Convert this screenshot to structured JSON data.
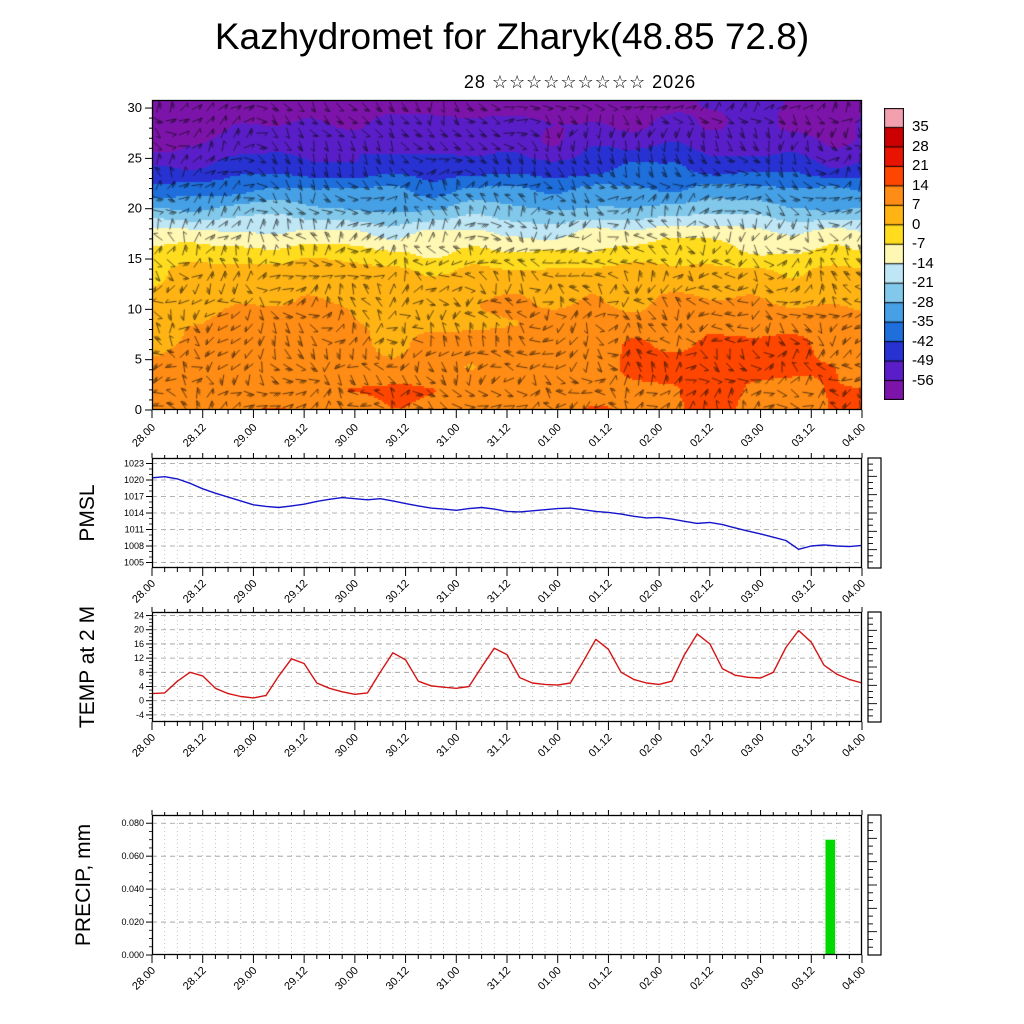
{
  "title": "Kazhydromet for Zharyk(48.85 72.8)",
  "subtitle": "28 ☆☆☆☆☆☆☆☆☆ 2026",
  "x_labels": [
    "28.00",
    "28.12",
    "29.00",
    "29.12",
    "30.00",
    "30.12",
    "31.00",
    "31.12",
    "01.00",
    "01.12",
    "02.00",
    "02.12",
    "03.00",
    "03.12",
    "04.00"
  ],
  "chart_data": [
    {
      "type": "heatmap",
      "name": "temperature-wind-cross-section",
      "x": [
        "28.00",
        "28.12",
        "29.00",
        "29.12",
        "30.00",
        "30.12",
        "31.00",
        "31.12",
        "01.00",
        "01.12",
        "02.00",
        "02.12",
        "03.00",
        "03.12",
        "04.00"
      ],
      "y_levels": [
        0,
        2,
        4,
        6,
        8,
        10,
        12,
        14,
        16,
        18,
        20,
        22,
        24,
        26,
        28,
        30
      ],
      "yticks": [
        0,
        5,
        10,
        15,
        20,
        25,
        30
      ],
      "ylim": [
        0,
        30
      ],
      "overlay": "wind-barbs",
      "colorbar_ticks": [
        35,
        28,
        21,
        14,
        7,
        0,
        -7,
        -14,
        -21,
        -28,
        -35,
        -42,
        -49,
        -56
      ],
      "colorbar_colors": [
        "#f2a0ae",
        "#cc0000",
        "#e81400",
        "#ff4600",
        "#ff8c14",
        "#ffb414",
        "#ffdc1e",
        "#fff8b4",
        "#bee6f5",
        "#82c8eb",
        "#46a0e6",
        "#1e6edc",
        "#2832d2",
        "#5a1ec8",
        "#7d14aa"
      ],
      "values": [
        [
          12,
          11,
          12,
          12,
          11,
          12,
          12,
          13,
          13,
          14,
          16,
          17,
          16,
          14,
          13
        ],
        [
          12,
          11,
          12,
          12,
          11,
          12,
          12,
          13,
          13,
          14,
          15,
          17,
          15,
          14,
          12
        ],
        [
          11,
          10,
          11,
          11,
          10,
          11,
          11,
          12,
          12,
          13,
          15,
          16,
          15,
          13,
          12
        ],
        [
          10,
          9,
          10,
          10,
          9,
          10,
          10,
          11,
          11,
          12,
          14,
          15,
          14,
          12,
          11
        ],
        [
          9,
          8,
          9,
          9,
          8,
          9,
          9,
          10,
          10,
          11,
          12,
          13,
          12,
          11,
          10
        ],
        [
          7,
          6,
          7,
          7,
          6,
          7,
          7,
          8,
          8,
          9,
          10,
          11,
          10,
          9,
          8
        ],
        [
          4,
          3,
          4,
          4,
          3,
          4,
          4,
          5,
          5,
          6,
          6,
          7,
          6,
          5,
          5
        ],
        [
          0,
          -1,
          0,
          0,
          -1,
          0,
          0,
          1,
          1,
          1,
          2,
          2,
          1,
          1,
          0
        ],
        [
          -8,
          -9,
          -8,
          -8,
          -9,
          -8,
          -8,
          -7,
          -7,
          -7,
          -6,
          -6,
          -7,
          -7,
          -8
        ],
        [
          -16,
          -17,
          -16,
          -16,
          -17,
          -16,
          -16,
          -15,
          -15,
          -15,
          -14,
          -14,
          -15,
          -15,
          -16
        ],
        [
          -26,
          -27,
          -26,
          -25,
          -26,
          -26,
          -25,
          -24,
          -25,
          -24,
          -24,
          -23,
          -24,
          -25,
          -26
        ],
        [
          -36,
          -37,
          -36,
          -35,
          -36,
          -36,
          -35,
          -34,
          -35,
          -34,
          -34,
          -33,
          -34,
          -35,
          -36
        ],
        [
          -46,
          -47,
          -46,
          -45,
          -46,
          -46,
          -45,
          -44,
          -45,
          -44,
          -44,
          -43,
          -44,
          -45,
          -46
        ],
        [
          -53,
          -54,
          -53,
          -52,
          -53,
          -53,
          -52,
          -51,
          -52,
          -51,
          -51,
          -50,
          -51,
          -52,
          -53
        ],
        [
          -57,
          -58,
          -57,
          -57,
          -58,
          -57,
          -57,
          -56,
          -57,
          -56,
          -56,
          -55,
          -56,
          -57,
          -57
        ],
        [
          -60,
          -60,
          -59,
          -59,
          -60,
          -59,
          -59,
          -58,
          -59,
          -58,
          -58,
          -57,
          -58,
          -59,
          -60
        ]
      ]
    },
    {
      "type": "line",
      "name": "PMSL",
      "ylabel": "PMSL",
      "color": "#1414cc",
      "ylim": [
        1004,
        1024
      ],
      "yticks": [
        1005,
        1008,
        1011,
        1014,
        1017,
        1020,
        1023
      ],
      "x_start": "28.00",
      "x_end": "04.00",
      "interval_hours": 3,
      "values": [
        1020.4,
        1020.6,
        1020.2,
        1019.4,
        1018.4,
        1017.6,
        1016.9,
        1016.2,
        1015.5,
        1015.2,
        1015.0,
        1015.3,
        1015.6,
        1016.1,
        1016.5,
        1016.8,
        1016.6,
        1016.4,
        1016.6,
        1016.2,
        1015.7,
        1015.3,
        1014.9,
        1014.7,
        1014.5,
        1014.8,
        1015.0,
        1014.7,
        1014.3,
        1014.2,
        1014.4,
        1014.6,
        1014.8,
        1014.9,
        1014.6,
        1014.3,
        1014.1,
        1013.8,
        1013.4,
        1013.1,
        1013.2,
        1012.9,
        1012.5,
        1012.1,
        1012.3,
        1011.9,
        1011.3,
        1010.7,
        1010.2,
        1009.6,
        1009.0,
        1007.4,
        1008.0,
        1008.2,
        1008.0,
        1007.9,
        1008.1
      ]
    },
    {
      "type": "line",
      "name": "TEMP at 2 M",
      "ylabel": "TEMP at 2 M",
      "color": "#d41414",
      "ylim": [
        -6,
        25
      ],
      "yticks": [
        -4,
        0,
        4,
        8,
        12,
        16,
        20,
        24
      ],
      "x_start": "28.00",
      "x_end": "04.00",
      "interval_hours": 3,
      "values": [
        2.0,
        2.2,
        5.5,
        8.0,
        7.0,
        3.5,
        2.0,
        1.2,
        0.8,
        1.5,
        7.0,
        11.8,
        10.5,
        5.0,
        3.5,
        2.5,
        1.8,
        2.2,
        8.0,
        13.5,
        11.5,
        5.5,
        4.2,
        3.8,
        3.5,
        4.0,
        9.5,
        14.8,
        13.0,
        6.5,
        5.0,
        4.6,
        4.4,
        5.0,
        11.0,
        17.3,
        14.5,
        8.0,
        6.0,
        5.0,
        4.6,
        5.5,
        13.0,
        18.8,
        16.0,
        9.0,
        7.2,
        6.6,
        6.4,
        8.0,
        15.0,
        19.8,
        16.5,
        10.0,
        7.5,
        6.0,
        5.0
      ]
    },
    {
      "type": "bar",
      "name": "PRECIP, mm",
      "ylabel": "PRECIP, mm",
      "color": "#00d800",
      "ylim": [
        0,
        0.085
      ],
      "yticks": [
        0,
        0.02,
        0.04,
        0.06,
        0.08
      ],
      "ytick_labels": [
        "0.000",
        "0.020",
        "0.040",
        "0.060",
        "0.080"
      ],
      "x_start": "28.00",
      "x_end": "04.00",
      "interval_hours": 3,
      "bars": [
        {
          "time": "03.12",
          "start_index": 53,
          "end_index": 54,
          "value": 0.07
        }
      ]
    }
  ]
}
